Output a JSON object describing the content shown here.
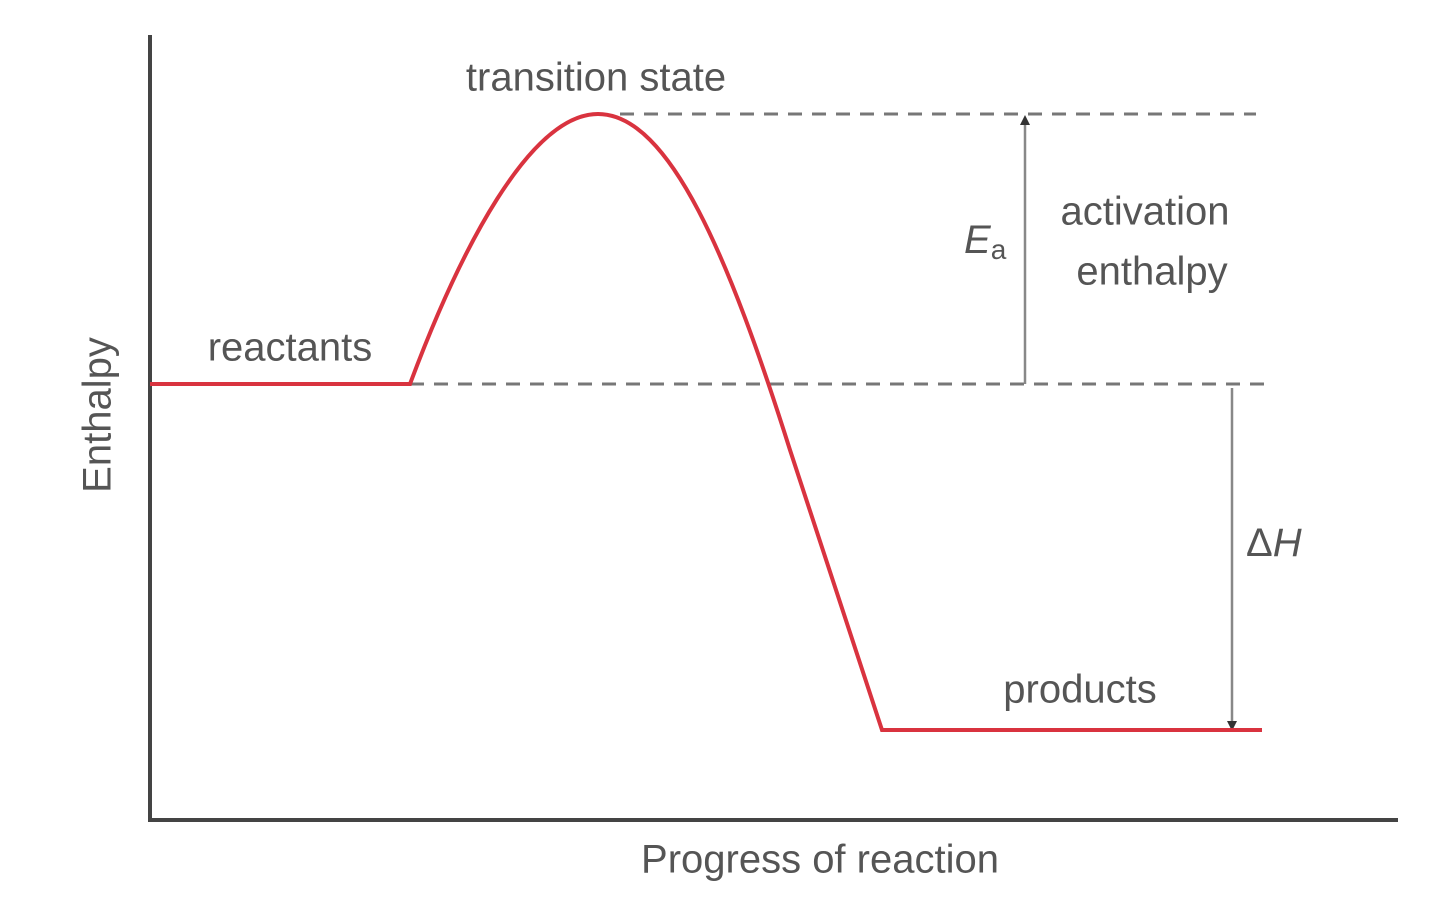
{
  "axes": {
    "y_label": "Enthalpy",
    "x_label": "Progress of reaction"
  },
  "labels": {
    "transition_state": "transition state",
    "reactants": "reactants",
    "products": "products"
  },
  "activation": {
    "symbol": "E",
    "subscript": "a",
    "lines": [
      "activation",
      "enthalpy"
    ]
  },
  "delta_h": {
    "symbol": "Δ",
    "letter": "H"
  }
}
